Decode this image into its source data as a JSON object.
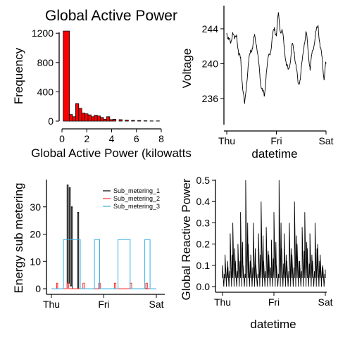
{
  "figure": {
    "bg": "#ffffff",
    "axis_color": "#000000"
  },
  "chart_data": [
    {
      "id": "hist",
      "type": "bar",
      "title": "Global Active Power",
      "xlabel": "Global Active Power (kilowatts",
      "ylabel": "Frequency",
      "xlim": [
        0,
        8
      ],
      "ylim": [
        0,
        1250
      ],
      "xticks": [
        "0",
        "2",
        "4",
        "6",
        "8"
      ],
      "yticks": [
        "0",
        "400",
        "800",
        "1200"
      ],
      "bin_width": 0.5,
      "bin_starts": [
        0.1,
        0.6,
        0.85,
        1.1,
        1.35,
        1.6,
        1.85,
        2.1,
        2.35,
        2.6,
        2.85,
        3.1,
        3.35,
        3.6,
        3.85,
        4.1,
        4.6,
        5.1,
        5.6,
        6.1,
        6.6,
        7.1,
        7.6
      ],
      "values": [
        1230,
        90,
        60,
        240,
        175,
        110,
        100,
        85,
        60,
        80,
        70,
        50,
        25,
        60,
        20,
        25,
        20,
        15,
        10,
        8,
        5,
        3,
        3
      ],
      "bar_color": "#ff0000"
    },
    {
      "id": "voltage",
      "type": "line",
      "ylabel": "Voltage",
      "xlabel": "datetime",
      "ylim": [
        233,
        246.5
      ],
      "yticks": [
        "236",
        "240",
        "244"
      ],
      "xticks": [
        "Thu",
        "Fri",
        "Sat"
      ],
      "series": [
        {
          "color": "#000000",
          "x": [
            0,
            0.04,
            0.08,
            0.12,
            0.16,
            0.2,
            0.24,
            0.28,
            0.32,
            0.36,
            0.4,
            0.44,
            0.48,
            0.52,
            0.56,
            0.6,
            0.64,
            0.68,
            0.72,
            0.76,
            0.8,
            0.84,
            0.88,
            0.92,
            0.96,
            1.0,
            1.04,
            1.08,
            1.12,
            1.16,
            1.2,
            1.24,
            1.28,
            1.32,
            1.36,
            1.4,
            1.44,
            1.48,
            1.52,
            1.56,
            1.6,
            1.64,
            1.68,
            1.72,
            1.76,
            1.8,
            1.84,
            1.88,
            1.92,
            1.96,
            2.0
          ],
          "y": [
            243.5,
            243,
            242,
            244,
            242.5,
            243.5,
            241,
            240.5,
            237.5,
            235,
            238,
            240,
            241.5,
            242,
            243,
            242.5,
            240,
            238,
            237,
            236,
            239.5,
            240.5,
            241.5,
            243,
            244,
            243.5,
            245.5,
            244,
            243.5,
            242,
            240,
            239,
            240.5,
            242,
            241.5,
            239.5,
            237.5,
            238.5,
            240,
            242.5,
            243.5,
            241.5,
            239.5,
            241,
            242.5,
            243.5,
            244.5,
            242,
            240.5,
            238.5,
            240
          ]
        }
      ]
    },
    {
      "id": "submetering",
      "type": "line",
      "ylabel": "Energy sub metering",
      "ylim": [
        0,
        40
      ],
      "yticks": [
        "0",
        "10",
        "20",
        "30"
      ],
      "xticks": [
        "Thu",
        "Fri",
        "Sat"
      ],
      "legend": {
        "position": "top-right"
      },
      "series": [
        {
          "name": "Sub_metering_1",
          "color": "#000000",
          "x": [
            0,
            0.3,
            0.3,
            0.32,
            0.32,
            0.34,
            0.34,
            0.36,
            0.36,
            0.38,
            0.38,
            0.4,
            0.4,
            0.5,
            0.5,
            0.52,
            0.52,
            2.0
          ],
          "y": [
            0,
            0,
            38,
            38,
            2,
            2,
            37,
            37,
            1,
            1,
            30,
            30,
            0,
            0,
            28,
            28,
            0,
            0
          ]
        },
        {
          "name": "Sub_metering_2",
          "color": "#ff2d2d",
          "x": [
            0,
            0.1,
            0.1,
            0.12,
            0.12,
            0.3,
            0.3,
            0.33,
            0.33,
            0.6,
            0.6,
            0.63,
            0.63,
            0.9,
            0.9,
            0.93,
            0.93,
            1.2,
            1.2,
            1.23,
            1.23,
            1.5,
            1.5,
            1.53,
            1.53,
            1.8,
            1.8,
            1.83,
            1.83,
            2.0
          ],
          "y": [
            0,
            0,
            2,
            2,
            0,
            0,
            2,
            2,
            0,
            0,
            2,
            2,
            0,
            0,
            2,
            2,
            0,
            0,
            2,
            2,
            0,
            0,
            2,
            2,
            0,
            0,
            2,
            2,
            0,
            0
          ]
        },
        {
          "name": "Sub_metering_3",
          "color": "#3ab0e0",
          "x": [
            0,
            0.23,
            0.23,
            0.55,
            0.55,
            0.82,
            0.82,
            0.92,
            0.92,
            1.27,
            1.27,
            1.5,
            1.5,
            1.78,
            1.78,
            1.88,
            1.88,
            2.0
          ],
          "y": [
            0,
            0,
            18,
            18,
            0,
            0,
            18,
            18,
            0,
            0,
            18,
            18,
            0,
            0,
            18,
            18,
            0,
            0
          ]
        }
      ]
    },
    {
      "id": "reactive",
      "type": "line",
      "ylabel": "Global Reactive Power",
      "xlabel": "datetime",
      "ylim": [
        -0.02,
        0.52
      ],
      "yticks": [
        "0.0",
        "0.1",
        "0.2",
        "0.3",
        "0.4",
        "0.5"
      ],
      "xticks": [
        "Thu",
        "Fri",
        "Sat"
      ],
      "series": [
        {
          "color": "#000000",
          "x": [
            0,
            0.05,
            0.1,
            0.15,
            0.2,
            0.25,
            0.3,
            0.35,
            0.4,
            0.45,
            0.5,
            0.55,
            0.6,
            0.65,
            0.7,
            0.75,
            0.8,
            0.85,
            0.9,
            0.95,
            1.0,
            1.05,
            1.1,
            1.15,
            1.2,
            1.25,
            1.3,
            1.35,
            1.4,
            1.45,
            1.5,
            1.55,
            1.6,
            1.65,
            1.7,
            1.75,
            1.8,
            1.85,
            1.9,
            1.95,
            2.0
          ],
          "y": [
            0.1,
            0.15,
            0.12,
            0.25,
            0.3,
            0.12,
            0.2,
            0.35,
            0.1,
            0.5,
            0.2,
            0.15,
            0.3,
            0.1,
            0.25,
            0.4,
            0.12,
            0.28,
            0.15,
            0.22,
            0.35,
            0.1,
            0.5,
            0.18,
            0.25,
            0.12,
            0.3,
            0.15,
            0.4,
            0.2,
            0.12,
            0.28,
            0.35,
            0.18,
            0.25,
            0.12,
            0.3,
            0.2,
            0.15,
            0.1,
            0.08
          ]
        }
      ]
    }
  ]
}
